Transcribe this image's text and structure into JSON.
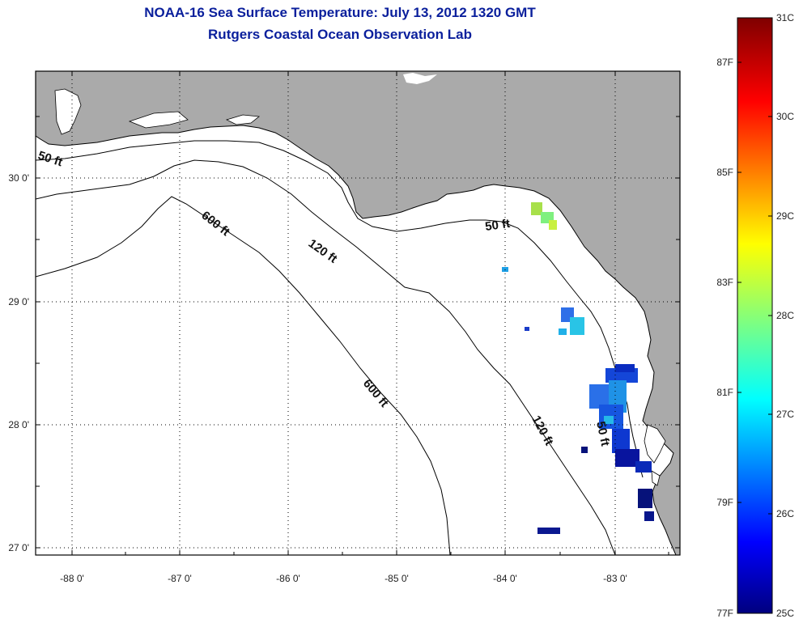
{
  "header": {
    "title": "NOAA-16 Sea Surface Temperature:  July 13, 2012 1320 GMT",
    "subtitle": "Rutgers Coastal Ocean Observation Lab"
  },
  "map": {
    "lon_labels": [
      "-88 0'",
      "-87 0'",
      "-86 0'",
      "-85 0'",
      "-84 0'",
      "-83 0'"
    ],
    "lat_labels": [
      "30 0'",
      "29 0'",
      "28 0'",
      "27 0'"
    ],
    "contour_labels": [
      "50 ft",
      "50 ft",
      "50 ft",
      "120 ft",
      "120 ft",
      "600 ft",
      "600 ft"
    ],
    "land_color": "#aaaaaa",
    "water_color": "#ffffff"
  },
  "colorbar": {
    "fahrenheit_labels": [
      "87F",
      "85F",
      "83F",
      "81F",
      "79F",
      "77F"
    ],
    "celsius_labels": [
      "31C",
      "30C",
      "29C",
      "28C",
      "27C",
      "26C",
      "25C"
    ],
    "colormap": "jet"
  }
}
